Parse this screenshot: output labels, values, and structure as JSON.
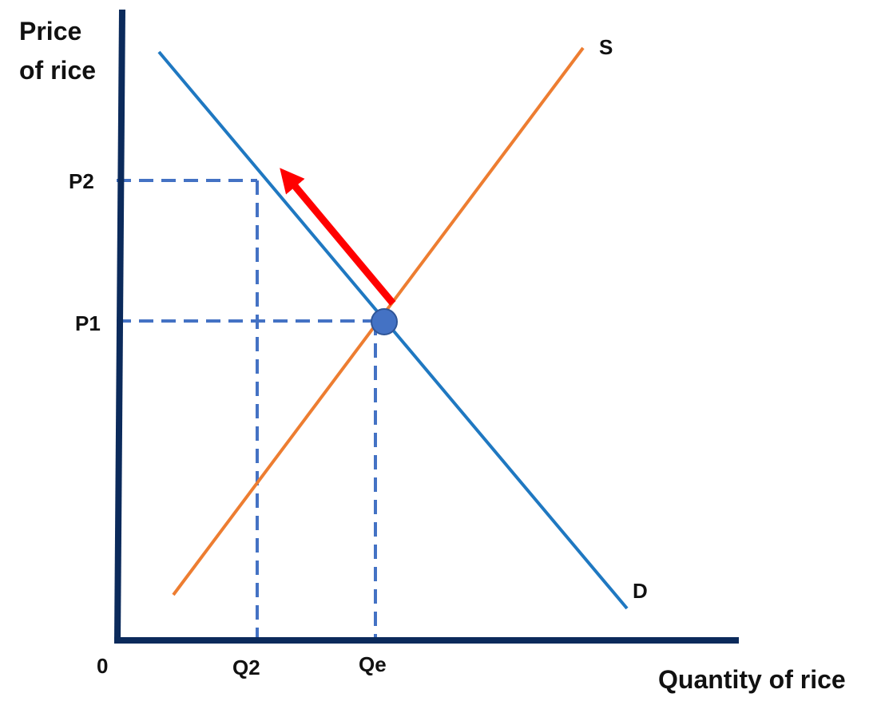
{
  "y_axis_label": [
    "Price",
    "of rice"
  ],
  "x_axis_label": "Quantity of rice",
  "origin_label": "0",
  "curves": {
    "supply": {
      "label": "S",
      "color": "#ED7D31"
    },
    "demand": {
      "label": "D",
      "color": "#1F78C1"
    }
  },
  "price_labels": {
    "p2": "P2",
    "p1": "P1"
  },
  "quantity_labels": {
    "q2": "Q2",
    "qe": "Qe"
  },
  "colors": {
    "axis": "#0B2A5B",
    "guides": "#4472C4",
    "arrow": "#FF0000",
    "equilibrium_point": "#4472C4"
  }
}
